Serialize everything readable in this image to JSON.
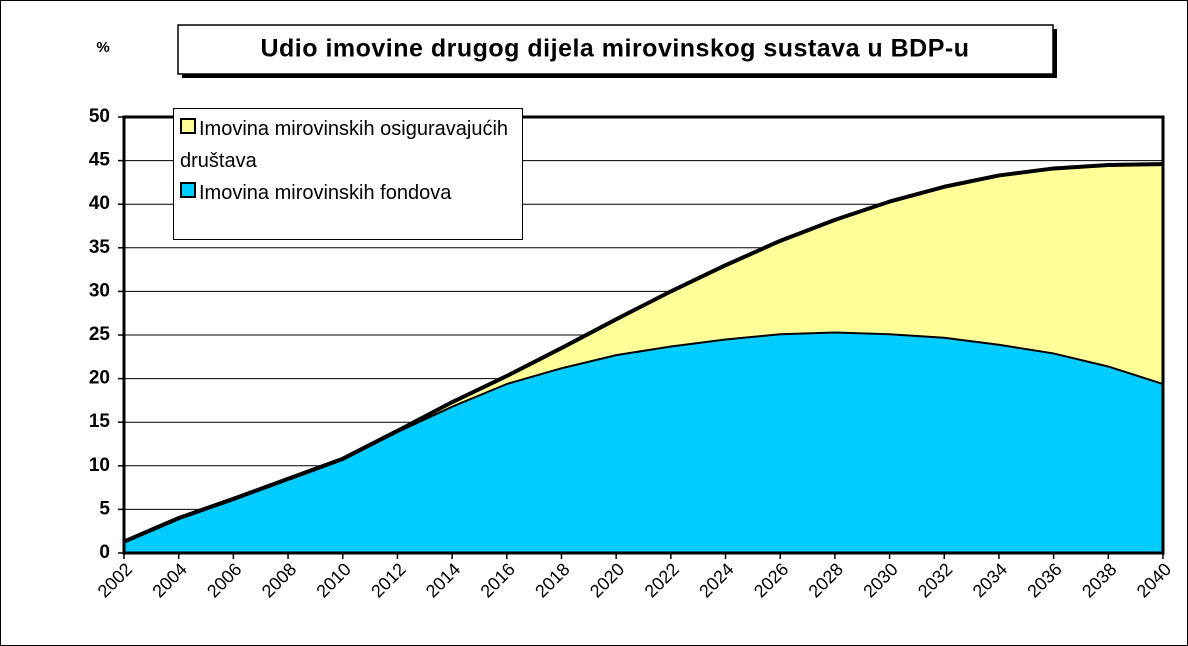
{
  "chart_data": {
    "type": "stacked_area",
    "title": "Udio imovine drugog dijela mirovinskog sustava u BDP-u",
    "y_label": "%",
    "categories": [
      "2002",
      "2004",
      "2006",
      "2008",
      "2010",
      "2012",
      "2014",
      "2016",
      "2018",
      "2020",
      "2022",
      "2024",
      "2026",
      "2028",
      "2030",
      "2032",
      "2034",
      "2036",
      "2038",
      "2040"
    ],
    "series": [
      {
        "name": "Imovina mirovinskih fondova",
        "color": "#00ccff",
        "values": [
          1.3,
          4.0,
          6.2,
          8.5,
          10.8,
          14.0,
          16.9,
          19.5,
          21.3,
          22.8,
          23.8,
          24.6,
          25.2,
          25.4,
          25.2,
          24.8,
          24.0,
          23.0,
          21.5,
          19.5
        ]
      },
      {
        "name": "Imovina mirovinskih osiguravajućih društava",
        "color": "#ffff99",
        "values": [
          0,
          0,
          0,
          0,
          0,
          0,
          0.4,
          0.8,
          2.2,
          4.0,
          6.2,
          8.4,
          10.6,
          12.8,
          15.1,
          17.2,
          19.3,
          21.1,
          23.0,
          25.1
        ]
      }
    ],
    "ylim": [
      0,
      50
    ],
    "yticks": [
      0,
      5,
      10,
      15,
      20,
      25,
      30,
      35,
      40,
      45,
      50
    ],
    "grid": true
  }
}
